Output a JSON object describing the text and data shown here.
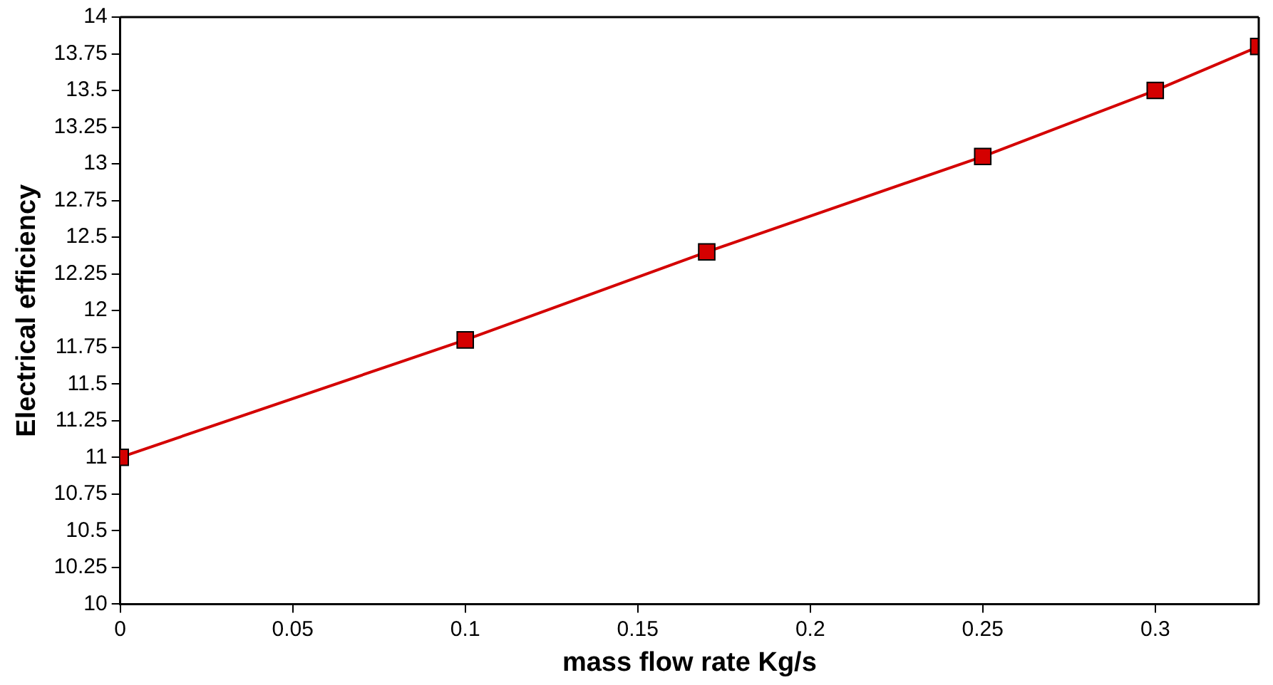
{
  "chart_data": {
    "type": "line",
    "xlabel": "mass flow rate Kg/s",
    "ylabel": "Electrical efficiency",
    "x": [
      0,
      0.1,
      0.17,
      0.25,
      0.3,
      0.33
    ],
    "series": [
      {
        "color": "#d40000",
        "values": [
          11,
          11.8,
          12.4,
          13.05,
          13.5,
          13.8
        ]
      }
    ],
    "xlim": [
      0,
      0.33
    ],
    "xticks": [
      0,
      0.05,
      0.1,
      0.15,
      0.2,
      0.25,
      0.3
    ],
    "ylim": [
      10,
      14
    ],
    "yticks": [
      10,
      10.25,
      10.5,
      10.75,
      11,
      11.25,
      11.5,
      11.75,
      12,
      12.25,
      12.5,
      12.75,
      13,
      13.25,
      13.5,
      13.75,
      14
    ],
    "grid": false,
    "legend": false,
    "marker": "square",
    "line_style": "solid"
  }
}
